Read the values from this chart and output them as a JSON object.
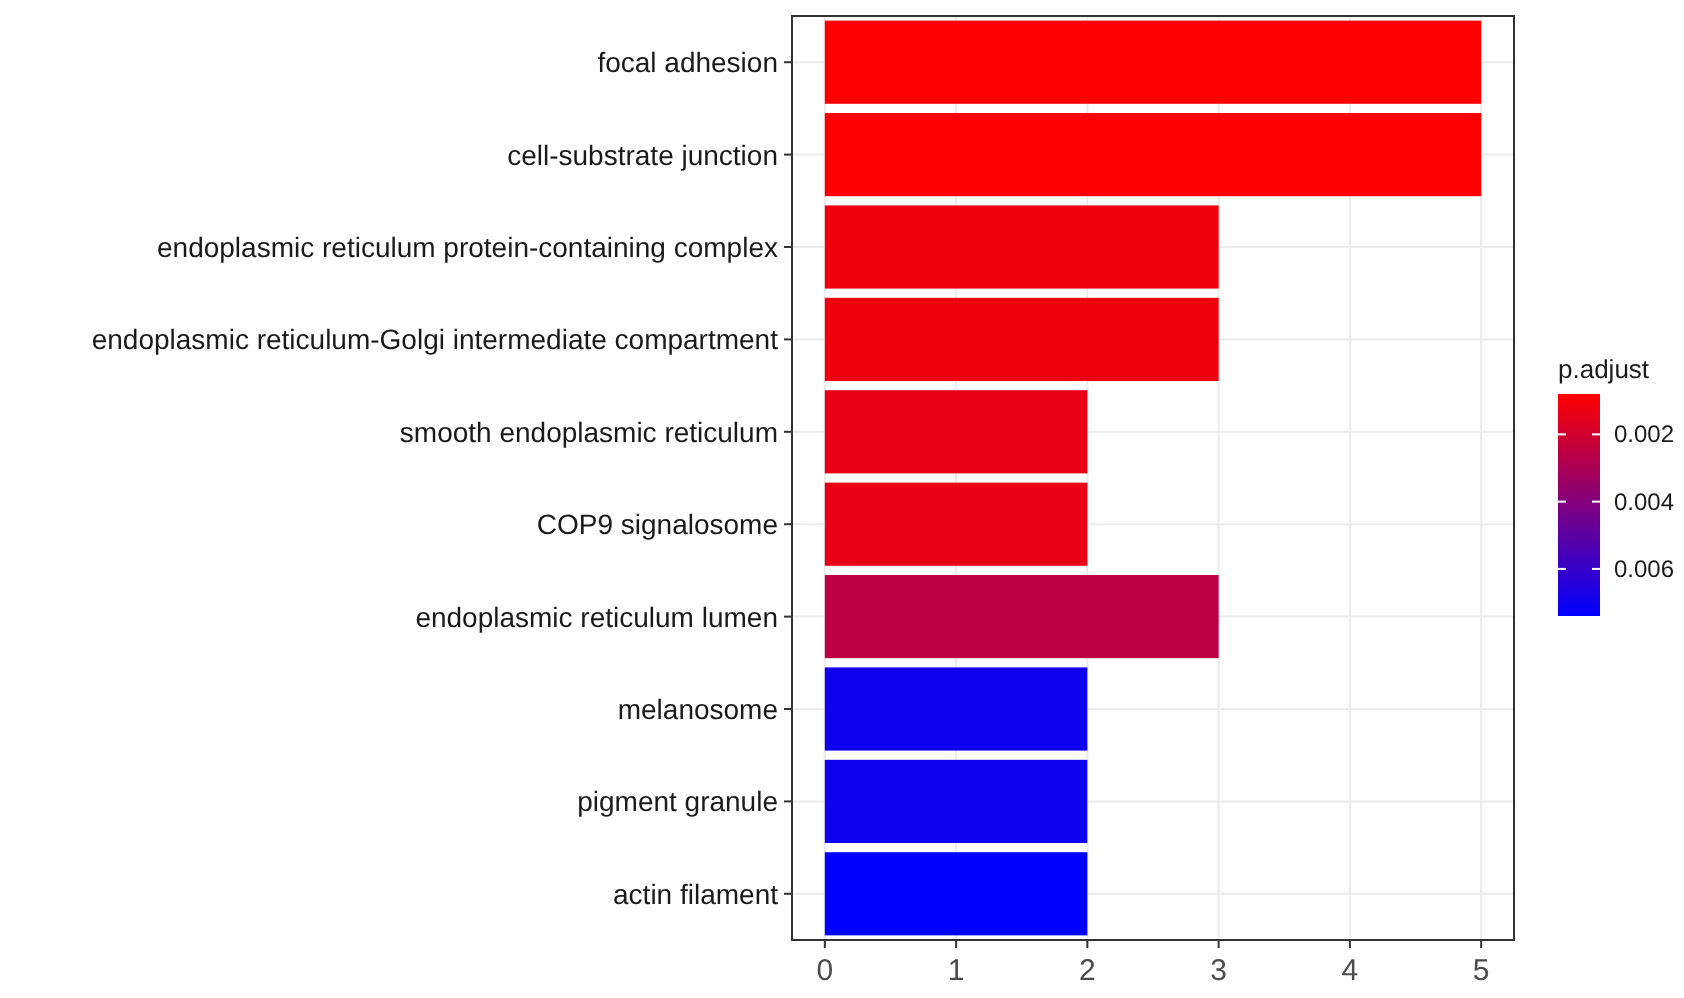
{
  "chart_data": {
    "type": "bar",
    "orientation": "horizontal",
    "categories": [
      "focal adhesion",
      "cell-substrate junction",
      "endoplasmic reticulum protein-containing complex",
      "endoplasmic reticulum-Golgi intermediate compartment",
      "smooth endoplasmic reticulum",
      "COP9 signalosome",
      "endoplasmic reticulum lumen",
      "melanosome",
      "pigment granule",
      "actin filament"
    ],
    "values": [
      5,
      5,
      3,
      3,
      2,
      2,
      3,
      2,
      2,
      2
    ],
    "cvalues": [
      0.0008,
      0.0008,
      0.0012,
      0.0012,
      0.0014,
      0.0014,
      0.0025,
      0.007,
      0.007,
      0.0074
    ],
    "clabel": "p.adjust",
    "clim": [
      0.0008,
      0.0074
    ],
    "cticks": [
      0.002,
      0.004,
      0.006
    ],
    "xlim": [
      -0.25,
      5.25
    ],
    "xticks": [
      0,
      1,
      2,
      3,
      4,
      5
    ],
    "grid": true
  }
}
